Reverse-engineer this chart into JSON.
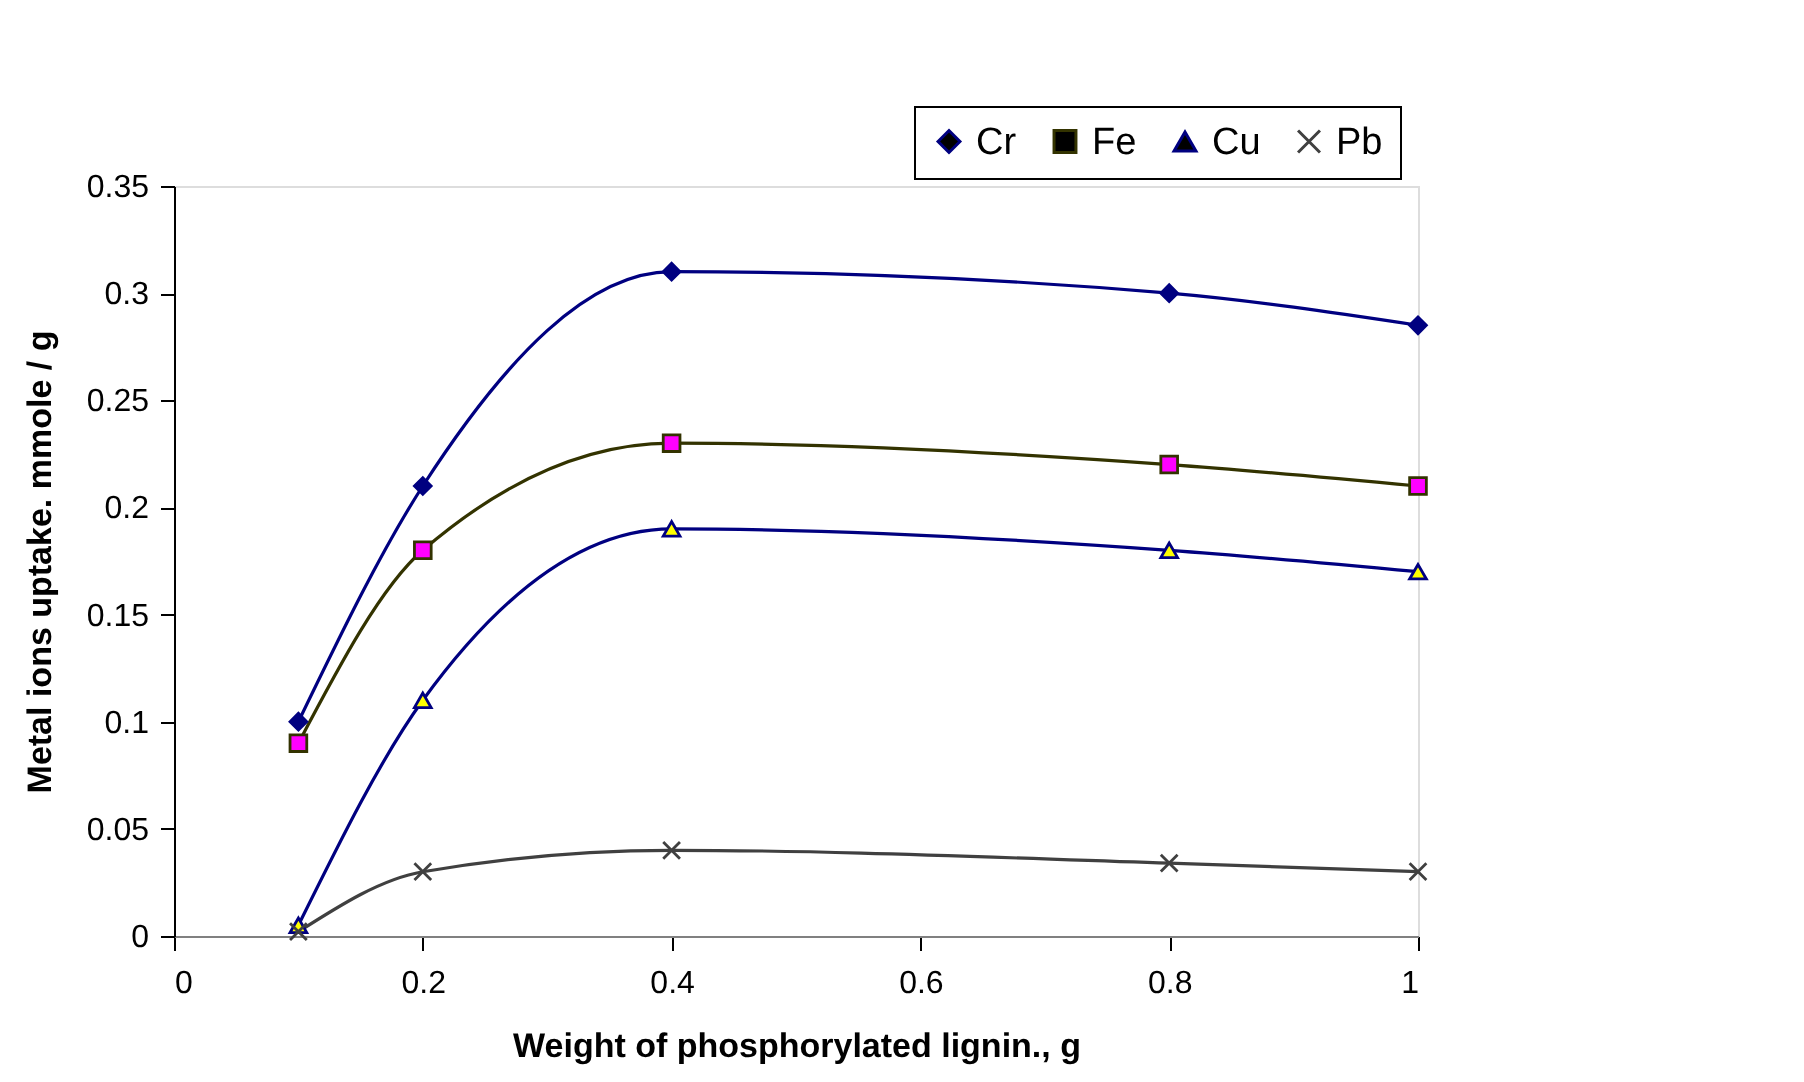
{
  "chart_data": {
    "type": "line",
    "xlabel": "Weight of phosphorylated lignin., g",
    "ylabel": "Metal ions uptake. mmole / g",
    "x": [
      0.1,
      0.2,
      0.4,
      0.8,
      1
    ],
    "series": [
      {
        "name": "Cr",
        "color": "#000080",
        "marker": "diamond",
        "colors": [
          "#000080",
          "#000080",
          "#000080",
          "#000080",
          "#000080"
        ],
        "values": [
          0.1,
          0.21,
          0.31,
          0.3,
          0.285
        ]
      },
      {
        "name": "Fe",
        "color": "#333300",
        "marker": "square",
        "colors": [
          "#ff00ff",
          "#ff00ff",
          "#ff00ff",
          "#ff00ff",
          "#ff00ff"
        ],
        "values": [
          0.09,
          0.18,
          0.23,
          0.22,
          0.21
        ]
      },
      {
        "name": "Cu",
        "color": "#000080",
        "marker": "triangle",
        "colors": [
          "#ffff00",
          "#ffff00",
          "#ffff00",
          "#ffff00",
          "#ffff00"
        ],
        "values": [
          0.005,
          0.11,
          0.19,
          0.18,
          0.17
        ]
      },
      {
        "name": "Pb",
        "color": "#404040",
        "marker": "cross",
        "values": [
          0.002,
          0.03,
          0.04,
          0.034,
          0.03
        ]
      }
    ],
    "xlim": [
      0,
      1
    ],
    "xticks": [
      0,
      0.2,
      0.4,
      0.6,
      0.8,
      1
    ],
    "ylim": [
      0,
      0.35
    ],
    "yticks": [
      0,
      0.05,
      0.1,
      0.15,
      0.2,
      0.25,
      0.3,
      0.35
    ],
    "grid": false,
    "legend": "top right",
    "line_style": "solid"
  }
}
